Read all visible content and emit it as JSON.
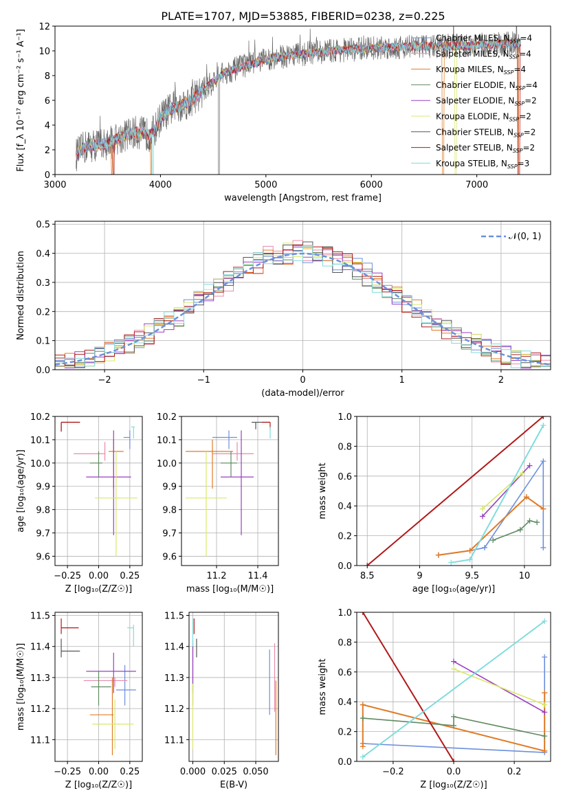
{
  "figure_title": "PLATE=1707, MJD=53885, FIBERID=0238, z=0.225",
  "colors": {
    "Chabrier MILES": "#6b8fdc",
    "Salpeter MILES": "#e88aa8",
    "Kroupa MILES": "#e07b25",
    "Chabrier ELODIE": "#5f8a60",
    "Salpeter ELODIE": "#9a3ec0",
    "Kroupa ELODIE": "#d9e86a",
    "Chabrier STELIB": "#555555",
    "Salpeter STELIB": "#b01818",
    "Kroupa STELIB": "#7fdcdc"
  },
  "chart_data": [
    {
      "id": "spectrum",
      "type": "line",
      "title": "",
      "xlabel": "wavelength [Angstrom, rest frame]",
      "ylabel": "Flux [f_λ 10⁻¹⁷ erg cm⁻² s⁻¹ A⁻¹]",
      "xlim": [
        3000,
        7700
      ],
      "ylim": [
        0,
        12
      ],
      "xticks": [
        3000,
        4000,
        5000,
        6000,
        7000
      ],
      "yticks": [
        0,
        2,
        4,
        6,
        8,
        10,
        12
      ],
      "legend_position": "right",
      "legend": [
        {
          "name": "Chabrier MILES, N",
          "sub": "SSP",
          "tail": "=4",
          "model": "Chabrier MILES"
        },
        {
          "name": "Salpeter MILES, N",
          "sub": "SSP",
          "tail": "=4",
          "model": "Salpeter MILES"
        },
        {
          "name": "Kroupa MILES, N",
          "sub": "SSP",
          "tail": "=4",
          "model": "Kroupa MILES"
        },
        {
          "name": "Chabrier ELODIE, N",
          "sub": "SSP",
          "tail": "=4",
          "model": "Chabrier ELODIE"
        },
        {
          "name": "Salpeter ELODIE, N",
          "sub": "SSP",
          "tail": "=2",
          "model": "Salpeter ELODIE"
        },
        {
          "name": "Kroupa ELODIE, N",
          "sub": "SSP",
          "tail": "=2",
          "model": "Kroupa ELODIE"
        },
        {
          "name": "Chabrier STELIB, N",
          "sub": "SSP",
          "tail": "=2",
          "model": "Chabrier STELIB"
        },
        {
          "name": "Salpeter STELIB, N",
          "sub": "SSP",
          "tail": "=2",
          "model": "Salpeter STELIB"
        },
        {
          "name": "Kroupa STELIB, N",
          "sub": "SSP",
          "tail": "=3",
          "model": "Kroupa STELIB"
        }
      ],
      "continuum": [
        [
          3200,
          1.6
        ],
        [
          3300,
          2.3
        ],
        [
          3500,
          2.5
        ],
        [
          3600,
          2.9
        ],
        [
          3700,
          3.3
        ],
        [
          3800,
          3.4
        ],
        [
          3900,
          3.2
        ],
        [
          3950,
          3.6
        ],
        [
          4000,
          4.6
        ],
        [
          4100,
          5.3
        ],
        [
          4200,
          5.6
        ],
        [
          4300,
          6.0
        ],
        [
          4400,
          6.8
        ],
        [
          4500,
          7.5
        ],
        [
          4600,
          8.2
        ],
        [
          4800,
          8.8
        ],
        [
          5000,
          9.3
        ],
        [
          5200,
          9.6
        ],
        [
          5400,
          9.8
        ],
        [
          5600,
          10.0
        ],
        [
          5800,
          10.1
        ],
        [
          6000,
          10.2
        ],
        [
          6200,
          10.3
        ],
        [
          6400,
          10.35
        ],
        [
          6600,
          10.4
        ],
        [
          6800,
          10.4
        ],
        [
          7000,
          10.45
        ],
        [
          7200,
          10.55
        ],
        [
          7400,
          10.6
        ]
      ],
      "drops": [
        [
          3540,
          "Kroupa MILES"
        ],
        [
          3555,
          "Salpeter STELIB"
        ],
        [
          3910,
          "Kroupa MILES"
        ],
        [
          3930,
          "Kroupa STELIB"
        ],
        [
          4555,
          "Chabrier STELIB"
        ],
        [
          6680,
          "Kroupa MILES"
        ],
        [
          6800,
          "Kroupa ELODIE"
        ],
        [
          7390,
          "Kroupa MILES"
        ],
        [
          7400,
          "Salpeter STELIB"
        ]
      ]
    },
    {
      "id": "residuals",
      "type": "area",
      "xlabel": "(data-model)/error",
      "ylabel": "Normed distribution",
      "xlim": [
        -2.5,
        2.5
      ],
      "ylim": [
        0,
        0.51
      ],
      "xticks": [
        -2,
        -1,
        0,
        1,
        2
      ],
      "xticklabels": [
        "−2",
        "−1",
        "0",
        "1",
        "2"
      ],
      "yticks": [
        0.0,
        0.1,
        0.2,
        0.3,
        0.4,
        0.5
      ],
      "legend": "𝒩(0, 1)",
      "legend_position": "top-right",
      "bin_width": 0.1
    },
    {
      "id": "age_vs_Z",
      "type": "scatter",
      "xlabel": "Z [log₁₀(Z/Z☉)]",
      "ylabel": "age  [log₁₀(age/yr)]",
      "xlim": [
        -0.35,
        0.35
      ],
      "ylim": [
        9.56,
        10.2
      ],
      "xticks": [
        -0.25,
        0.0,
        0.25
      ],
      "xticklabels": [
        "−0.25",
        "0.00",
        "0.25"
      ],
      "yticks": [
        9.6,
        9.7,
        9.8,
        9.9,
        10.0,
        10.1,
        10.2
      ],
      "points": [
        {
          "model": "Chabrier MILES",
          "x": 0.25,
          "y": 10.11,
          "xerr": [
            0.05,
            0.0
          ],
          "yerr": [
            0.05,
            0.03
          ]
        },
        {
          "model": "Salpeter MILES",
          "x": 0.05,
          "y": 10.04,
          "xerr": [
            0.25,
            0.0
          ],
          "yerr": [
            0.03,
            0.05
          ]
        },
        {
          "model": "Kroupa MILES",
          "x": 0.12,
          "y": 10.05,
          "xerr": [
            0.04,
            0.08
          ],
          "yerr": [
            0.16,
            0.05
          ]
        },
        {
          "model": "Chabrier ELODIE",
          "x": 0.0,
          "y": 10.0,
          "xerr": [
            0.07,
            0.03
          ],
          "yerr": [
            0.06,
            0.05
          ]
        },
        {
          "model": "Salpeter ELODIE",
          "x": 0.12,
          "y": 9.94,
          "xerr": [
            0.22,
            0.14
          ],
          "yerr": [
            0.25,
            0.2
          ]
        },
        {
          "model": "Kroupa ELODIE",
          "x": 0.14,
          "y": 9.85,
          "xerr": [
            0.17,
            0.17
          ],
          "yerr": [
            0.25,
            0.2
          ]
        },
        {
          "model": "Chabrier STELIB",
          "x": -0.3,
          "y": 10.175,
          "xerr": [
            0.0,
            0.15
          ],
          "yerr": [
            0.04,
            0.0
          ]
        },
        {
          "model": "Salpeter STELIB",
          "x": -0.3,
          "y": 10.175,
          "xerr": [
            0.0,
            0.15
          ],
          "yerr": [
            0.04,
            0.0
          ]
        },
        {
          "model": "Kroupa STELIB",
          "x": 0.28,
          "y": 10.155,
          "xerr": [
            0.02,
            0.01
          ],
          "yerr": [
            0.05,
            0.0
          ]
        }
      ]
    },
    {
      "id": "age_vs_mass",
      "type": "scatter",
      "xlabel": "mass [log₁₀(M/M☉)]",
      "ylabel": "",
      "xlim": [
        11.03,
        11.5
      ],
      "ylim": [
        9.56,
        10.2
      ],
      "xticks": [
        11.2,
        11.4
      ],
      "yticks": [
        9.6,
        9.7,
        9.8,
        9.9,
        10.0,
        10.1,
        10.2
      ],
      "points": [
        {
          "model": "Chabrier MILES",
          "x": 11.26,
          "y": 10.11,
          "xerr": [
            0.08,
            0.04
          ],
          "yerr": [
            0.05,
            0.03
          ]
        },
        {
          "model": "Salpeter MILES",
          "x": 11.3,
          "y": 10.04,
          "xerr": [
            0.12,
            0.08
          ],
          "yerr": [
            0.03,
            0.05
          ]
        },
        {
          "model": "Kroupa MILES",
          "x": 11.18,
          "y": 10.05,
          "xerr": [
            0.13,
            0.1
          ],
          "yerr": [
            0.16,
            0.05
          ]
        },
        {
          "model": "Chabrier ELODIE",
          "x": 11.27,
          "y": 10.0,
          "xerr": [
            0.05,
            0.03
          ],
          "yerr": [
            0.06,
            0.05
          ]
        },
        {
          "model": "Salpeter ELODIE",
          "x": 11.32,
          "y": 9.94,
          "xerr": [
            0.1,
            0.06
          ],
          "yerr": [
            0.25,
            0.2
          ]
        },
        {
          "model": "Kroupa ELODIE",
          "x": 11.15,
          "y": 9.85,
          "xerr": [
            0.1,
            0.1
          ],
          "yerr": [
            0.25,
            0.2
          ]
        },
        {
          "model": "Chabrier STELIB",
          "x": 11.39,
          "y": 10.175,
          "xerr": [
            0.02,
            0.07
          ],
          "yerr": [
            0.03,
            0.0
          ]
        },
        {
          "model": "Salpeter STELIB",
          "x": 11.46,
          "y": 10.175,
          "xerr": [
            0.04,
            0.0
          ],
          "yerr": [
            0.03,
            0.0
          ]
        },
        {
          "model": "Kroupa STELIB",
          "x": 11.46,
          "y": 10.155,
          "xerr": [
            0.0,
            0.0
          ],
          "yerr": [
            0.05,
            0.0
          ]
        }
      ]
    },
    {
      "id": "weight_vs_age",
      "type": "line",
      "xlabel": "age  [log₁₀(age/yr)]",
      "ylabel": "mass weight",
      "xlim": [
        8.4,
        10.25
      ],
      "ylim": [
        0,
        1
      ],
      "xticks": [
        8.5,
        9.0,
        9.5,
        10.0
      ],
      "yticks": [
        0.0,
        0.2,
        0.4,
        0.6,
        0.8,
        1.0
      ],
      "series": [
        {
          "model": "Chabrier MILES",
          "x": [
            9.18,
            9.48,
            9.62,
            10.18,
            10.18
          ],
          "y": [
            0.07,
            0.1,
            0.12,
            0.7,
            0.12
          ]
        },
        {
          "model": "Salpeter MILES",
          "x": [
            9.18,
            9.48,
            10.02,
            10.18
          ],
          "y": [
            0.07,
            0.1,
            0.46,
            0.38
          ]
        },
        {
          "model": "Kroupa MILES",
          "x": [
            9.18,
            9.48,
            10.02,
            10.18
          ],
          "y": [
            0.07,
            0.1,
            0.46,
            0.38
          ]
        },
        {
          "model": "Chabrier ELODIE",
          "x": [
            9.7,
            9.96,
            10.05,
            10.12
          ],
          "y": [
            0.17,
            0.24,
            0.3,
            0.29
          ]
        },
        {
          "model": "Salpeter ELODIE",
          "x": [
            9.6,
            10.05
          ],
          "y": [
            0.33,
            0.67
          ]
        },
        {
          "model": "Kroupa ELODIE",
          "x": [
            9.6,
            9.98
          ],
          "y": [
            0.38,
            0.62
          ]
        },
        {
          "model": "Salpeter STELIB",
          "x": [
            8.5,
            10.18
          ],
          "y": [
            0.0,
            1.0
          ]
        },
        {
          "model": "Kroupa STELIB",
          "x": [
            9.3,
            9.48,
            10.18
          ],
          "y": [
            0.02,
            0.04,
            0.94
          ]
        }
      ]
    },
    {
      "id": "mass_vs_Z",
      "type": "scatter",
      "xlabel": "Z [log₁₀(Z/Z☉)]",
      "ylabel": "mass [log₁₀(M/M☉)]",
      "xlim": [
        -0.35,
        0.35
      ],
      "ylim": [
        11.03,
        11.51
      ],
      "xticks": [
        -0.25,
        0.0,
        0.25
      ],
      "xticklabels": [
        "−0.25",
        "0.00",
        "0.25"
      ],
      "yticks": [
        11.1,
        11.2,
        11.3,
        11.4,
        11.5
      ],
      "points": [
        {
          "model": "Chabrier MILES",
          "x": 0.21,
          "y": 11.26,
          "xerr": [
            0.07,
            0.09
          ],
          "yerr": [
            0.05,
            0.08
          ]
        },
        {
          "model": "Salpeter MILES",
          "x": 0.13,
          "y": 11.29,
          "xerr": [
            0.25,
            0.1
          ],
          "yerr": [
            0.02,
            0.01
          ]
        },
        {
          "model": "Kroupa MILES",
          "x": 0.11,
          "y": 11.18,
          "xerr": [
            0.18,
            0.01
          ],
          "yerr": [
            0.13,
            0.12
          ]
        },
        {
          "model": "Chabrier ELODIE",
          "x": 0.0,
          "y": 11.27,
          "xerr": [
            0.06,
            0.1
          ],
          "yerr": [
            0.06,
            0.05
          ]
        },
        {
          "model": "Salpeter ELODIE",
          "x": 0.12,
          "y": 11.32,
          "xerr": [
            0.22,
            0.18
          ],
          "yerr": [
            0.07,
            0.06
          ]
        },
        {
          "model": "Kroupa ELODIE",
          "x": 0.13,
          "y": 11.15,
          "xerr": [
            0.18,
            0.15
          ],
          "yerr": [
            0.08,
            0.08
          ]
        },
        {
          "model": "Chabrier STELIB",
          "x": -0.3,
          "y": 11.385,
          "xerr": [
            0.0,
            0.15
          ],
          "yerr": [
            0.02,
            0.04
          ]
        },
        {
          "model": "Salpeter STELIB",
          "x": -0.3,
          "y": 11.46,
          "xerr": [
            0.0,
            0.14
          ],
          "yerr": [
            0.02,
            0.03
          ]
        },
        {
          "model": "Kroupa STELIB",
          "x": 0.28,
          "y": 11.46,
          "xerr": [
            0.05,
            0.0
          ],
          "yerr": [
            0.06,
            0.01
          ]
        }
      ]
    },
    {
      "id": "mass_vs_EBV",
      "type": "scatter",
      "xlabel": "E(B-V)",
      "ylabel": "",
      "xlim": [
        -0.003,
        0.068
      ],
      "ylim": [
        11.03,
        11.51
      ],
      "xticks": [
        0.0,
        0.025,
        0.05
      ],
      "xticklabels": [
        "0.000",
        "0.025",
        "0.050"
      ],
      "yticks": [
        11.1,
        11.2,
        11.3,
        11.4,
        11.5
      ],
      "points": [
        {
          "model": "Chabrier MILES",
          "x": 0.061,
          "y": 11.26,
          "yerr": [
            0.08,
            0.13
          ]
        },
        {
          "model": "Salpeter MILES",
          "x": 0.065,
          "y": 11.29,
          "yerr": [
            0.1,
            0.12
          ]
        },
        {
          "model": "Kroupa MILES",
          "x": 0.066,
          "y": 11.18,
          "yerr": [
            0.13,
            0.11
          ]
        },
        {
          "model": "Chabrier ELODIE",
          "x": 0.0,
          "y": 11.27,
          "yerr": [
            0.06,
            0.15
          ]
        },
        {
          "model": "Salpeter ELODIE",
          "x": 0.0,
          "y": 11.32,
          "yerr": [
            0.07,
            0.08
          ]
        },
        {
          "model": "Kroupa ELODIE",
          "x": 0.0,
          "y": 11.15,
          "yerr": [
            0.08,
            0.13
          ]
        },
        {
          "model": "Chabrier STELIB",
          "x": 0.003,
          "y": 11.385,
          "yerr": [
            0.02,
            0.04
          ]
        },
        {
          "model": "Salpeter STELIB",
          "x": 0.001,
          "y": 11.46,
          "yerr": [
            0.02,
            0.03
          ]
        },
        {
          "model": "Kroupa STELIB",
          "x": 0.0,
          "y": 11.46,
          "yerr": [
            0.06,
            0.03
          ]
        }
      ]
    },
    {
      "id": "weight_vs_Z",
      "type": "line",
      "xlabel": "Z [log₁₀(Z/Z☉)]",
      "ylabel": "mass weight",
      "xlim": [
        -0.32,
        0.32
      ],
      "ylim": [
        0,
        1
      ],
      "xticks": [
        -0.2,
        0.0,
        0.2
      ],
      "xticklabels": [
        "−0.2",
        "0.0",
        "0.2"
      ],
      "yticks": [
        0.0,
        0.2,
        0.4,
        0.6,
        0.8,
        1.0
      ],
      "series": [
        {
          "model": "Chabrier MILES",
          "x": [
            -0.3,
            0.3,
            0.3
          ],
          "y": [
            0.12,
            0.06,
            0.7
          ]
        },
        {
          "model": "Salpeter MILES",
          "x": [
            -0.3,
            0.3,
            0.3
          ],
          "y": [
            0.38,
            0.07,
            0.46
          ]
        },
        {
          "model": "Kroupa MILES",
          "x": [
            -0.3,
            -0.3,
            0.3,
            0.3
          ],
          "y": [
            0.1,
            0.38,
            0.07,
            0.46
          ]
        },
        {
          "model": "Chabrier ELODIE",
          "x": [
            -0.3,
            0.0,
            0.0,
            0.3
          ],
          "y": [
            0.29,
            0.24,
            0.3,
            0.17
          ]
        },
        {
          "model": "Salpeter ELODIE",
          "x": [
            0.0,
            0.3
          ],
          "y": [
            0.67,
            0.33
          ]
        },
        {
          "model": "Kroupa ELODIE",
          "x": [
            0.0,
            0.3
          ],
          "y": [
            0.62,
            0.38
          ]
        },
        {
          "model": "Salpeter STELIB",
          "x": [
            -0.3,
            0.0
          ],
          "y": [
            1.0,
            0.0
          ]
        },
        {
          "model": "Kroupa STELIB",
          "x": [
            -0.3,
            0.3
          ],
          "y": [
            0.03,
            0.94
          ]
        }
      ]
    }
  ]
}
